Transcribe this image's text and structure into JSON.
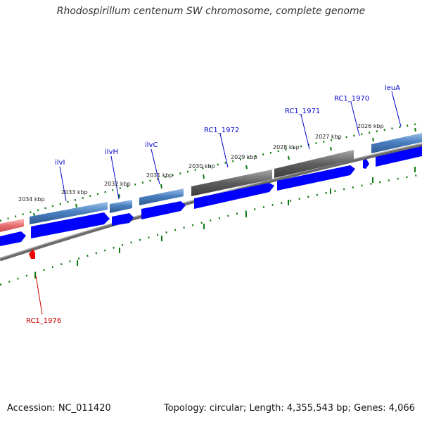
{
  "title": "Rhodospirillum centenum SW chromosome, complete genome",
  "footer": {
    "accession": "Accession: NC_011420",
    "topology": "Topology: circular; Length: 4,355,543 bp; Genes: 4,066"
  },
  "scale_labels": [
    "2034 kbp",
    "2033 kbp",
    "2032 kbp",
    "2031 kbp",
    "2030 kbp",
    "2029 kbp",
    "2028 kbp",
    "2027 kbp",
    "2026 kbp"
  ],
  "gene_labels": [
    {
      "text": "ilvI",
      "color": "#0000cc"
    },
    {
      "text": "ilvH",
      "color": "#0000cc"
    },
    {
      "text": "ilvC",
      "color": "#0000cc"
    },
    {
      "text": "RC1_1972",
      "color": "#0000cc"
    },
    {
      "text": "RC1_1971",
      "color": "#0000cc"
    },
    {
      "text": "RC1_1970",
      "color": "#0000cc"
    },
    {
      "text": "leuA",
      "color": "#0000cc"
    },
    {
      "text": "RC1_1976",
      "color": "#cc0000"
    }
  ],
  "colors": {
    "cds_blue": "#0000ff",
    "gene_steel": "#4a78b5",
    "gene_gray": "#606060",
    "gene_pink": "#e87878",
    "reverse_red": "#ee0000",
    "tick_green": "#117a11",
    "backbone": "#888888"
  }
}
